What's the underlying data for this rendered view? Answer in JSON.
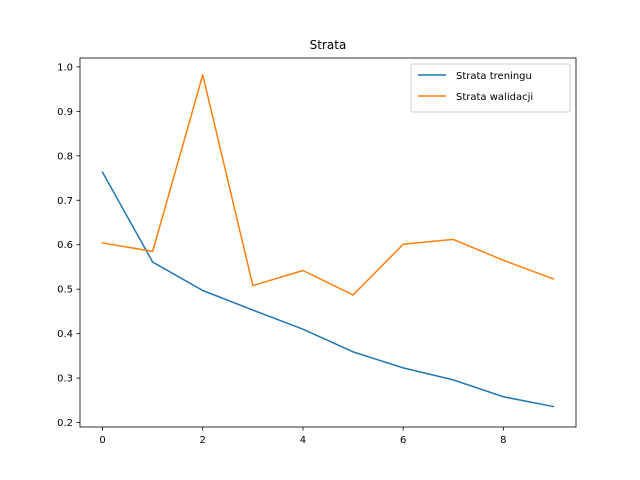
{
  "chart_data": {
    "type": "line",
    "title": "Strata",
    "xlabel": "",
    "ylabel": "",
    "x": [
      0,
      1,
      2,
      3,
      4,
      5,
      6,
      7,
      8,
      9
    ],
    "xlim": [
      -0.45,
      9.45
    ],
    "ylim": [
      0.19,
      1.02
    ],
    "xticks": [
      0,
      2,
      4,
      6,
      8
    ],
    "yticks": [
      0.2,
      0.3,
      0.4,
      0.5,
      0.6,
      0.7,
      0.8,
      0.9,
      1.0
    ],
    "ytick_labels": [
      "0.2",
      "0.3",
      "0.4",
      "0.5",
      "0.6",
      "0.7",
      "0.8",
      "0.9",
      "1.0"
    ],
    "grid": false,
    "legend_position": "top-right",
    "series": [
      {
        "name": "Strata treningu",
        "color": "#1f77b4",
        "values": [
          0.763,
          0.561,
          0.497,
          0.453,
          0.41,
          0.359,
          0.323,
          0.296,
          0.258,
          0.236
        ]
      },
      {
        "name": "Strata walidacji",
        "color": "#ff7f0e",
        "values": [
          0.604,
          0.585,
          0.982,
          0.508,
          0.542,
          0.487,
          0.601,
          0.612,
          0.565,
          0.523
        ]
      }
    ]
  }
}
